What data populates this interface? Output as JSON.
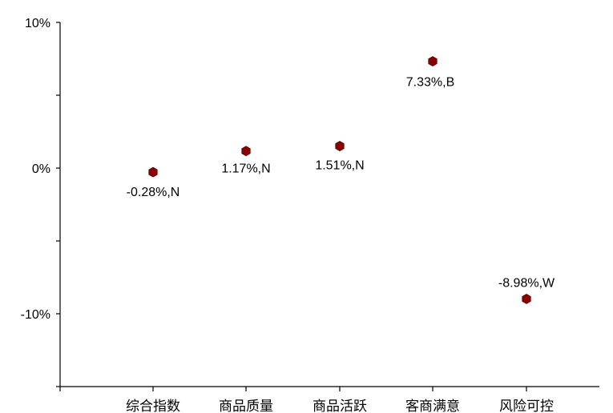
{
  "chart_data": {
    "type": "scatter",
    "title": "",
    "xlabel": "",
    "ylabel": "",
    "categories": [
      "综合指数",
      "商品质量",
      "商品活跃",
      "客商满意",
      "风险可控"
    ],
    "series": [
      {
        "values": [
          -0.28,
          1.17,
          1.51,
          7.33,
          -8.98
        ],
        "labels": [
          "-0.28%,N",
          "1.17%,N",
          "1.51%,N",
          "7.33%,B",
          "-8.98%,W"
        ]
      }
    ],
    "ylim": [
      -15,
      10
    ],
    "yticks": [
      -10,
      0,
      10
    ],
    "ytick_labels": [
      "-10%",
      "0%",
      "10%"
    ],
    "y_minor_step": 5,
    "grid": false,
    "legend": "none",
    "marker": "hexagon",
    "marker_color": "#8B0000"
  }
}
